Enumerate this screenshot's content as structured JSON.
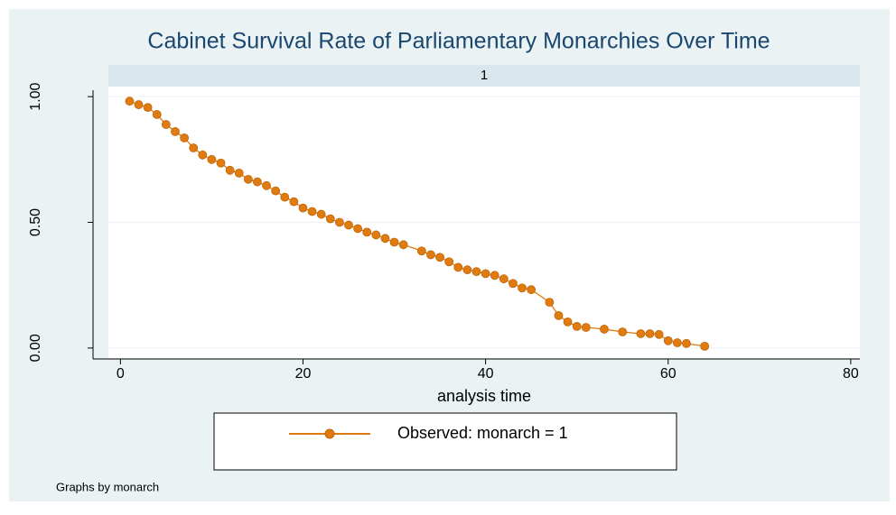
{
  "chart_data": {
    "type": "line",
    "title": "Cabinet Survival Rate of Parliamentary Monarchies Over Time",
    "panel_label": "1",
    "x_label": "analysis time",
    "note": "Graphs by monarch",
    "x": [
      1,
      2,
      3,
      4,
      5,
      6,
      7,
      8,
      9,
      10,
      11,
      12,
      13,
      14,
      15,
      16,
      17,
      18,
      19,
      20,
      21,
      22,
      23,
      24,
      25,
      26,
      27,
      28,
      29,
      30,
      31,
      33,
      34,
      35,
      36,
      37,
      38,
      39,
      40,
      41,
      42,
      43,
      44,
      45,
      47,
      48,
      49,
      50,
      51,
      53,
      55,
      57,
      58,
      59,
      60,
      61,
      62,
      64
    ],
    "series": [
      {
        "name": "Observed: monarch = 1",
        "color": "#e07b0f",
        "values": [
          0.982,
          0.968,
          0.957,
          0.929,
          0.889,
          0.861,
          0.836,
          0.796,
          0.768,
          0.75,
          0.736,
          0.707,
          0.696,
          0.671,
          0.661,
          0.646,
          0.625,
          0.6,
          0.582,
          0.557,
          0.543,
          0.532,
          0.514,
          0.5,
          0.489,
          0.475,
          0.461,
          0.45,
          0.436,
          0.421,
          0.411,
          0.386,
          0.371,
          0.361,
          0.343,
          0.321,
          0.311,
          0.304,
          0.296,
          0.289,
          0.275,
          0.257,
          0.239,
          0.232,
          0.182,
          0.129,
          0.104,
          0.086,
          0.082,
          0.075,
          0.064,
          0.057,
          0.057,
          0.054,
          0.029,
          0.021,
          0.018,
          0.007
        ]
      }
    ],
    "xlim": [
      -3,
      81
    ],
    "xticks": [
      0,
      20,
      40,
      60,
      80
    ],
    "ylim": [
      -0.04,
      1.04
    ],
    "yticks": [
      {
        "value": 0,
        "label": "0.00"
      },
      {
        "value": 0.5,
        "label": "0.50"
      },
      {
        "value": 1,
        "label": "1.00"
      }
    ],
    "grid": true,
    "legend": "bottom"
  }
}
